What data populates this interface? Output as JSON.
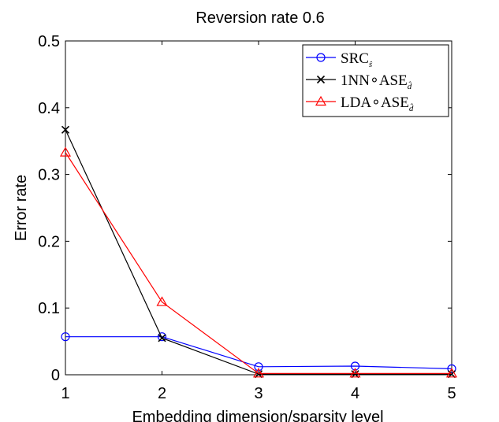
{
  "chart_data": {
    "type": "line",
    "title": "Reversion rate 0.6",
    "xlabel": "Embedding dimension/sparsity level",
    "ylabel": "Error rate",
    "x": [
      1,
      2,
      3,
      4,
      5
    ],
    "xlim": [
      1,
      5
    ],
    "ylim": [
      0,
      0.5
    ],
    "xticks": [
      "1",
      "2",
      "3",
      "4",
      "5"
    ],
    "yticks": [
      "0",
      "0.1",
      "0.2",
      "0.3",
      "0.4",
      "0.5"
    ],
    "grid": false,
    "legend_position": "top-right",
    "series": [
      {
        "name": "SRC",
        "name_subscript": "ŝ",
        "color": "#0000ff",
        "marker": "circle",
        "values": [
          0.057,
          0.057,
          0.012,
          0.013,
          0.009
        ]
      },
      {
        "name": "1NN∘ASE",
        "name_subscript": "d̂",
        "color": "#000000",
        "marker": "x",
        "values": [
          0.367,
          0.055,
          0.001,
          0.001,
          0.001
        ]
      },
      {
        "name": "LDA∘ASE",
        "name_subscript": "d̂",
        "color": "#ff0000",
        "marker": "triangle",
        "values": [
          0.333,
          0.109,
          0.002,
          0.002,
          0.002
        ]
      }
    ]
  }
}
